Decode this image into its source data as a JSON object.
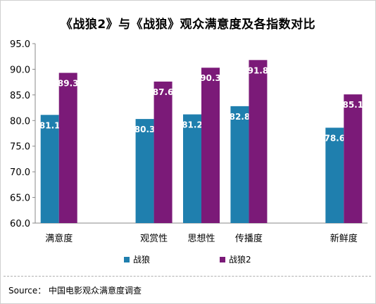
{
  "title": "《战狼2》与《战狼》观众满意度及各指数对比",
  "source": "Source： 中国电影观众满意度调查",
  "chart_data": {
    "type": "bar",
    "categories": [
      "满意度",
      "",
      "观赏性",
      "思想性",
      "传播度",
      "",
      "新鲜度"
    ],
    "series": [
      {
        "name": "战狼",
        "color": "#1f7fae",
        "values": [
          81.1,
          null,
          80.3,
          81.2,
          82.8,
          null,
          78.6
        ]
      },
      {
        "name": "战狼2",
        "color": "#7b1a78",
        "values": [
          89.3,
          null,
          87.6,
          90.3,
          91.8,
          null,
          85.1
        ]
      }
    ],
    "ylim": [
      60.0,
      95.0
    ],
    "yticks": [
      "60.0",
      "65.0",
      "70.0",
      "75.0",
      "80.0",
      "85.0",
      "90.0",
      "95.0"
    ],
    "grid": false,
    "legend_position": "bottom"
  }
}
